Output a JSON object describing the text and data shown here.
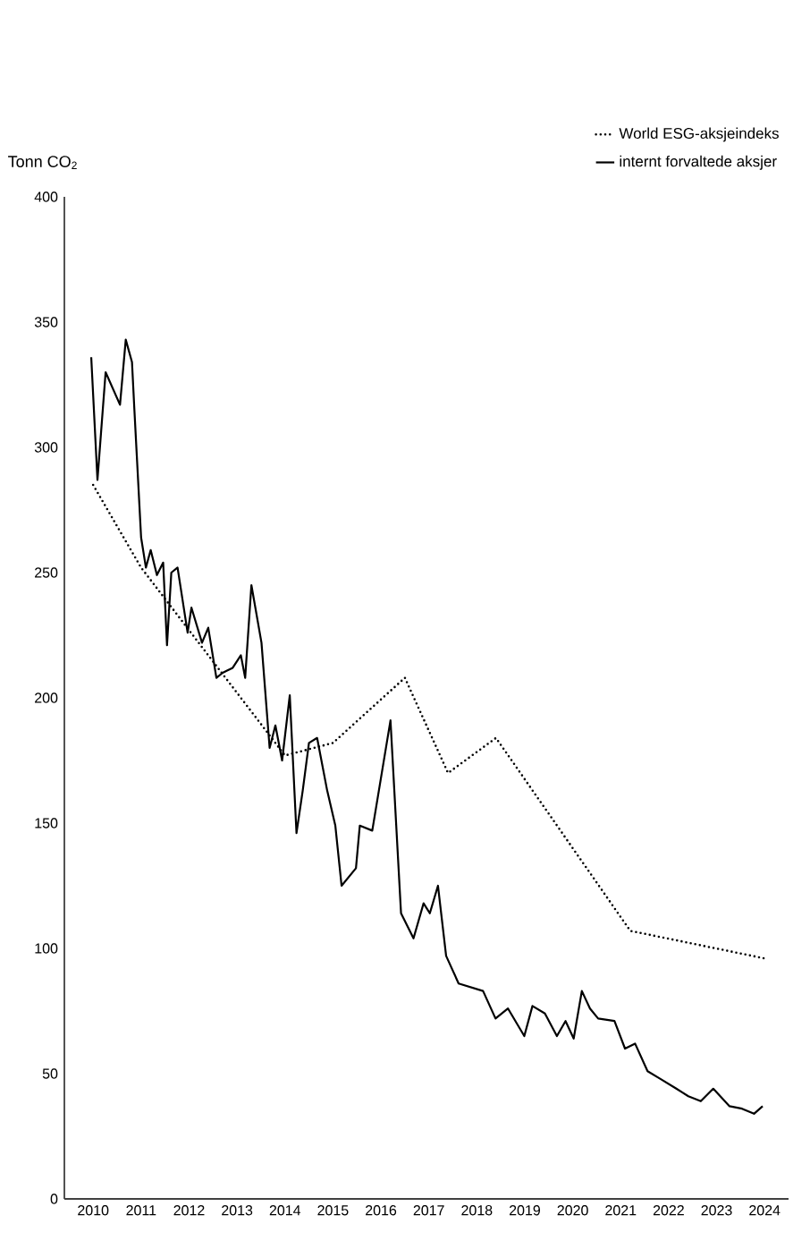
{
  "chart_data": {
    "type": "line",
    "ylabel": "Tonn CO$_{2}$",
    "xlim": [
      2009.4,
      2024.5
    ],
    "xticks": [
      2010,
      2011,
      2012,
      2013,
      2014,
      2015,
      2016,
      2017,
      2018,
      2019,
      2020,
      2021,
      2022,
      2023,
      2024
    ],
    "ylim": [
      0,
      400
    ],
    "yticks": [
      0,
      50,
      100,
      150,
      200,
      250,
      300,
      350,
      400
    ],
    "legend": "top right",
    "series": [
      {
        "name": "World ESG-aksjeindeks",
        "color": "#000000",
        "line_style": "dotted",
        "x": [
          2010.0,
          2011.0,
          2014.0,
          2015.0,
          2016.5,
          2017.4,
          2018.4,
          2021.2,
          2024.0
        ],
        "values": [
          285,
          252,
          177,
          182,
          208,
          170,
          184,
          107,
          96
        ]
      },
      {
        "name": "internt forvaltede aksjer",
        "color": "#000000",
        "line_style": "solid",
        "x": [
          2009.96,
          2010.09,
          2010.26,
          2010.56,
          2010.68,
          2010.81,
          2010.86,
          2011.0,
          2011.1,
          2011.2,
          2011.33,
          2011.46,
          2011.54,
          2011.63,
          2011.76,
          2011.97,
          2012.05,
          2012.27,
          2012.4,
          2012.57,
          2012.7,
          2012.91,
          2013.08,
          2013.17,
          2013.3,
          2013.51,
          2013.68,
          2013.8,
          2013.94,
          2014.1,
          2014.24,
          2014.37,
          2014.5,
          2014.67,
          2014.88,
          2015.05,
          2015.18,
          2015.48,
          2015.56,
          2015.82,
          2016.2,
          2016.42,
          2016.68,
          2016.89,
          2017.02,
          2017.19,
          2017.36,
          2017.62,
          2018.13,
          2018.39,
          2018.65,
          2018.99,
          2019.16,
          2019.42,
          2019.67,
          2019.85,
          2020.02,
          2020.19,
          2020.36,
          2020.53,
          2020.87,
          2021.09,
          2021.3,
          2021.56,
          2021.82,
          2022.16,
          2022.41,
          2022.67,
          2022.93,
          2023.27,
          2023.53,
          2023.78,
          2023.96
        ],
        "values": [
          336,
          287,
          330,
          317,
          343,
          334,
          315,
          264,
          252,
          259,
          249,
          254,
          221,
          250,
          252,
          226,
          236,
          222,
          228,
          208,
          210,
          212,
          217,
          208,
          245,
          222,
          180,
          189,
          175,
          201,
          146,
          163,
          182,
          184,
          163,
          149,
          125,
          132,
          149,
          147,
          191,
          114,
          104,
          118,
          114,
          125,
          97,
          86,
          83,
          72,
          76,
          65,
          77,
          74,
          65,
          71,
          64,
          83,
          76,
          72,
          71,
          60,
          62,
          51,
          48,
          44,
          41,
          39,
          44,
          37,
          36,
          34,
          37
        ]
      }
    ]
  }
}
